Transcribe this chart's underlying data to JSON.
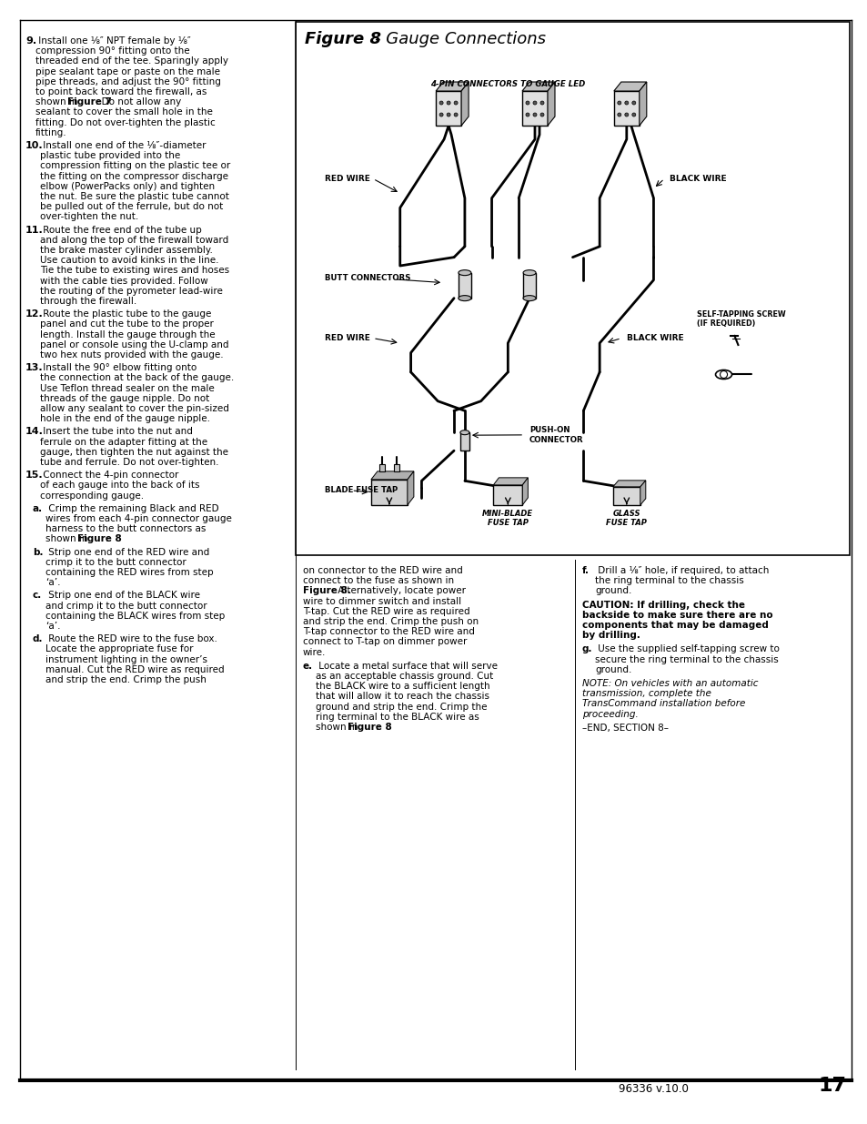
{
  "page_background": "#ffffff",
  "page_num": "17",
  "page_code": "96336 v.10.0",
  "figure_title_bold": "Figure 8",
  "figure_title_italic": "- Gauge Connections",
  "left_text": [
    {
      "type": "numbered",
      "num": "9.",
      "bold_num": true,
      "lines": [
        "Install one ⅛″ NPT female by ⅛″",
        "compression 90° fitting onto the",
        "threaded end of the tee. Sparingly apply",
        "pipe sealant tape or paste on the male",
        "pipe threads, and adjust the 90° fitting",
        "to point back toward the firewall, as",
        "shown in ❙Figure 7❙. Do not allow any",
        "sealant to cover the small hole in the",
        "fitting. Do not over-tighten the plastic",
        "fitting."
      ]
    },
    {
      "type": "numbered",
      "num": "10.",
      "bold_num": true,
      "lines": [
        "Install one end of the ⅛″-diameter",
        "plastic tube provided into the",
        "compression fitting on the plastic tee or",
        "the fitting on the compressor discharge",
        "elbow (PowerPacks only) and tighten",
        "the nut. Be sure the plastic tube cannot",
        "be pulled out of the ferrule, but do not",
        "over-tighten the nut."
      ]
    },
    {
      "type": "numbered",
      "num": "11.",
      "bold_num": true,
      "lines": [
        "Route the free end of the tube up",
        "and along the top of the firewall toward",
        "the brake master cylinder assembly.",
        "Use caution to avoid kinks in the line.",
        "Tie the tube to existing wires and hoses",
        "with the cable ties provided. Follow",
        "the routing of the pyrometer lead-wire",
        "through the firewall."
      ]
    },
    {
      "type": "numbered",
      "num": "12.",
      "bold_num": true,
      "lines": [
        "Route the plastic tube to the gauge",
        "panel and cut the tube to the proper",
        "length. Install the gauge through the",
        "panel or console using the U-clamp and",
        "two hex nuts provided with the gauge."
      ]
    },
    {
      "type": "numbered",
      "num": "13.",
      "bold_num": true,
      "lines": [
        "Install the 90° elbow fitting onto",
        "the connection at the back of the gauge.",
        "Use Teflon thread sealer on the male",
        "threads of the gauge nipple. Do not",
        "allow any sealant to cover the pin-sized",
        "hole in the end of the gauge nipple."
      ]
    },
    {
      "type": "numbered",
      "num": "14.",
      "bold_num": true,
      "lines": [
        "Insert the tube into the nut and",
        "ferrule on the adapter fitting at the",
        "gauge, then tighten the nut against the",
        "tube and ferrule. Do not over-tighten."
      ]
    },
    {
      "type": "numbered",
      "num": "15.",
      "bold_num": true,
      "lines": [
        "Connect the 4-pin connector",
        "of each gauge into the back of its",
        "corresponding gauge."
      ]
    },
    {
      "type": "lettered",
      "num": "a.",
      "lines": [
        "Crimp the remaining Black and RED",
        "wires from each 4-pin connector gauge",
        "harness to the butt connectors as",
        "shown in ❙Figure 8❙."
      ]
    },
    {
      "type": "lettered",
      "num": "b.",
      "lines": [
        "Strip one end of the RED wire and",
        "crimp it to the butt connector",
        "containing the RED wires from step",
        "‘a’."
      ]
    },
    {
      "type": "lettered",
      "num": "c.",
      "lines": [
        "Strip one end of the BLACK wire",
        "and crimp it to the butt connector",
        "containing the BLACK wires from step",
        "‘a’."
      ]
    },
    {
      "type": "lettered",
      "num": "d.",
      "lines": [
        "Route the RED wire to the fuse box.",
        "Locate the appropriate fuse for",
        "instrument lighting in the owner’s",
        "manual. Cut the RED wire as required",
        "and strip the end. Crimp the push"
      ]
    }
  ],
  "mid_text": [
    {
      "type": "continuation",
      "lines": [
        "on connector to the RED wire and",
        "connect to the fuse as shown in",
        "❙Figure 8.❙ Alternatively, locate power",
        "wire to dimmer switch and install",
        "T-tap. Cut the RED wire as required",
        "and strip the end. Crimp the push on",
        "T-tap connector to the RED wire and",
        "connect to T-tap on dimmer power",
        "wire."
      ]
    },
    {
      "type": "lettered",
      "num": "e.",
      "lines": [
        "Locate a metal surface that will serve",
        "as an acceptable chassis ground. Cut",
        "the BLACK wire to a sufficient length",
        "that will allow it to reach the chassis",
        "ground and strip the end. Crimp the",
        "ring terminal to the BLACK wire as",
        "shown in ❙Figure 8❙."
      ]
    }
  ],
  "right_text": [
    {
      "type": "lettered",
      "num": "f.",
      "lines": [
        "Drill a ⅛″ hole, if required, to attach",
        "the ring terminal to the chassis",
        "ground."
      ]
    },
    {
      "type": "caution",
      "lines": [
        "CAUTION: If drilling, check the",
        "backside to make sure there are no",
        "components that may be damaged",
        "by drilling."
      ]
    },
    {
      "type": "lettered",
      "num": "g.",
      "lines": [
        "Use the supplied self-tapping screw to",
        "secure the ring terminal to the chassis",
        "ground."
      ]
    },
    {
      "type": "italic_note",
      "lines": [
        "NOTE: On vehicles with an automatic",
        "transmission, complete the",
        "TransCommand installation before",
        "proceeding."
      ]
    },
    {
      "type": "end",
      "lines": [
        "–END, SECTION 8–"
      ]
    }
  ]
}
